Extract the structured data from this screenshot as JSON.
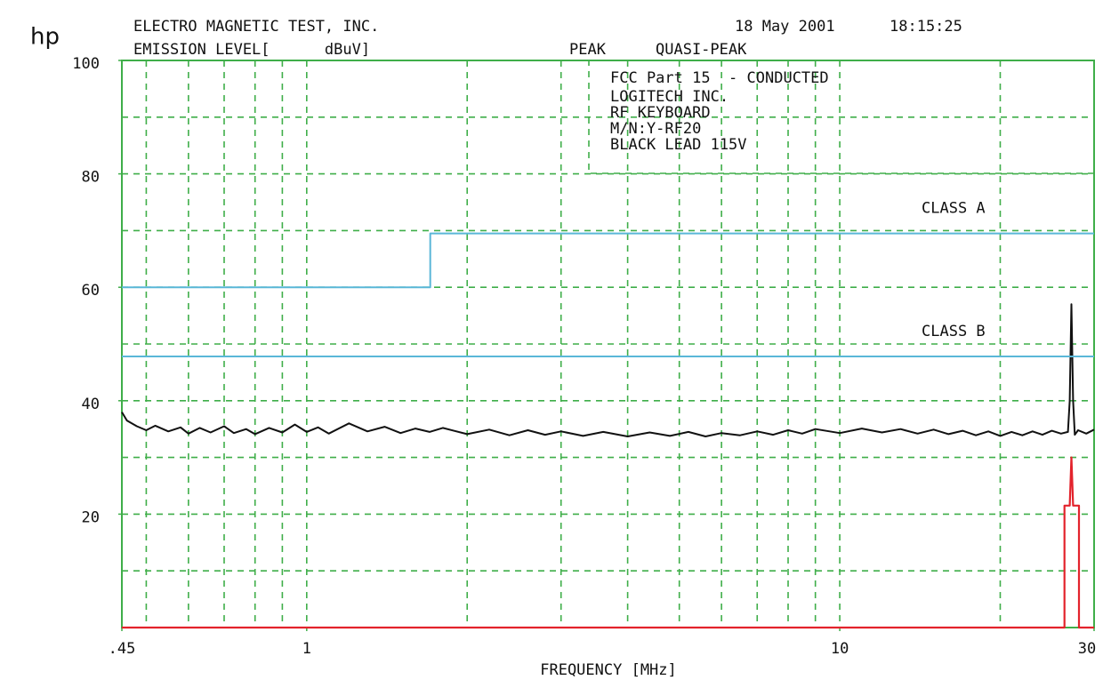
{
  "chart_data": {
    "type": "line",
    "logo": "hp",
    "title": "ELECTRO MAGNETIC TEST, INC.",
    "date": "18 May 2001",
    "time": "18:15:25",
    "ylabel": "EMISSION LEVEL[      dBuV]",
    "xlabel": "FREQUENCY [MHz]",
    "annotations": [
      "FCC Part 15  - CONDUCTED",
      "LOGITECH INC.",
      "RF KEYBOARD",
      "M/N:Y-RF20",
      "BLACK LEAD 115V"
    ],
    "xscale": "log",
    "xlim": [
      0.45,
      30
    ],
    "ylim": [
      0,
      100
    ],
    "xticks": [
      {
        "value": 0.45,
        "label": ".45"
      },
      1,
      10,
      30
    ],
    "yticks": [
      20,
      40,
      60,
      80,
      100
    ],
    "xgrid": [
      0.5,
      0.6,
      0.7,
      0.8,
      0.9,
      1,
      2,
      3,
      4,
      5,
      6,
      7,
      8,
      9,
      10,
      20
    ],
    "ygrid": [
      10,
      20,
      30,
      40,
      50,
      60,
      70,
      80,
      90
    ],
    "grid": true,
    "grid_color": "#3fae49",
    "series": [
      {
        "name": "PEAK",
        "color": "#111111",
        "x": [
          0.45,
          0.46,
          0.48,
          0.5,
          0.52,
          0.55,
          0.58,
          0.6,
          0.63,
          0.66,
          0.7,
          0.73,
          0.77,
          0.8,
          0.85,
          0.9,
          0.95,
          1,
          1.05,
          1.1,
          1.2,
          1.3,
          1.4,
          1.5,
          1.6,
          1.7,
          1.8,
          2,
          2.2,
          2.4,
          2.6,
          2.8,
          3,
          3.3,
          3.6,
          4,
          4.4,
          4.8,
          5.2,
          5.6,
          6,
          6.5,
          7,
          7.5,
          8,
          8.5,
          9,
          10,
          11,
          12,
          13,
          14,
          15,
          16,
          17,
          18,
          19,
          20,
          21,
          22,
          23,
          24,
          25,
          26,
          26.8,
          27,
          27.2,
          27.4,
          27.6,
          28,
          29,
          30
        ],
        "values": [
          38,
          36.5,
          35.5,
          34.8,
          35.6,
          34.6,
          35.3,
          34.2,
          35.2,
          34.4,
          35.5,
          34.3,
          35,
          34.1,
          35.2,
          34.4,
          35.8,
          34.5,
          35.3,
          34.2,
          36,
          34.6,
          35.4,
          34.3,
          35.1,
          34.5,
          35.2,
          34.1,
          34.9,
          33.9,
          34.8,
          34,
          34.6,
          33.8,
          34.5,
          33.7,
          34.4,
          33.8,
          34.5,
          33.7,
          34.3,
          33.9,
          34.6,
          34,
          34.8,
          34.2,
          35,
          34.3,
          35.1,
          34.4,
          35,
          34.2,
          34.9,
          34.1,
          34.7,
          33.9,
          34.6,
          33.8,
          34.5,
          33.9,
          34.6,
          34,
          34.7,
          34.2,
          34.5,
          40,
          57,
          40,
          34,
          34.8,
          34.2,
          34.9
        ]
      },
      {
        "name": "QUASI-PEAK",
        "color": "#e3232c",
        "x": [
          0.45,
          26.4,
          26.4,
          27.0,
          27.2,
          27.4,
          28.1,
          28.1,
          30
        ],
        "values": [
          0,
          0,
          21.5,
          21.5,
          30,
          21.5,
          21.5,
          0,
          0
        ]
      },
      {
        "name": "CLASS A",
        "color": "#5ab7d8",
        "x": [
          0.45,
          1.705,
          1.705,
          30
        ],
        "values": [
          60,
          60,
          69.5,
          69.5
        ]
      },
      {
        "name": "CLASS B",
        "color": "#5ab7d8",
        "x": [
          0.45,
          30
        ],
        "values": [
          47.8,
          47.8
        ]
      }
    ]
  }
}
